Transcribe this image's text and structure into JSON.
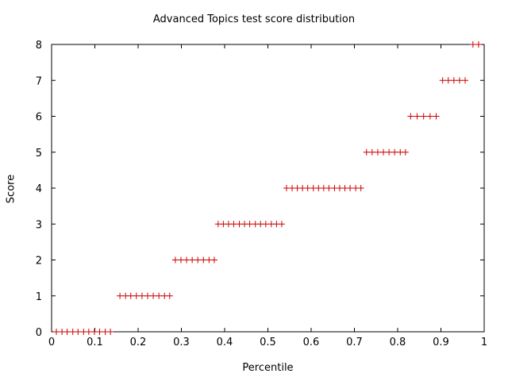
{
  "chart_data": {
    "type": "scatter",
    "title": "Advanced Topics test score distribution",
    "xlabel": "Percentile",
    "ylabel": "Score",
    "xlim": [
      0,
      1
    ],
    "ylim": [
      0,
      8
    ],
    "x_ticks": [
      "0",
      "0.1",
      "0.2",
      "0.3",
      "0.4",
      "0.5",
      "0.6",
      "0.7",
      "0.8",
      "0.9",
      "1"
    ],
    "y_ticks": [
      "0",
      "1",
      "2",
      "3",
      "4",
      "5",
      "6",
      "7",
      "8"
    ],
    "grid": false,
    "marker": "plus",
    "color": "#cc0000",
    "series": [
      {
        "points": [
          [
            0.011,
            0
          ],
          [
            0.024,
            0
          ],
          [
            0.036,
            0
          ],
          [
            0.049,
            0
          ],
          [
            0.061,
            0
          ],
          [
            0.074,
            0
          ],
          [
            0.086,
            0
          ],
          [
            0.099,
            0
          ],
          [
            0.111,
            0
          ],
          [
            0.124,
            0
          ],
          [
            0.136,
            0
          ],
          [
            0.158,
            1
          ],
          [
            0.171,
            1
          ],
          [
            0.183,
            1
          ],
          [
            0.196,
            1
          ],
          [
            0.209,
            1
          ],
          [
            0.222,
            1
          ],
          [
            0.235,
            1
          ],
          [
            0.248,
            1
          ],
          [
            0.261,
            1
          ],
          [
            0.273,
            1
          ],
          [
            0.286,
            2
          ],
          [
            0.299,
            2
          ],
          [
            0.312,
            2
          ],
          [
            0.325,
            2
          ],
          [
            0.338,
            2
          ],
          [
            0.351,
            2
          ],
          [
            0.364,
            2
          ],
          [
            0.376,
            2
          ],
          [
            0.385,
            3
          ],
          [
            0.397,
            3
          ],
          [
            0.409,
            3
          ],
          [
            0.421,
            3
          ],
          [
            0.434,
            3
          ],
          [
            0.446,
            3
          ],
          [
            0.458,
            3
          ],
          [
            0.471,
            3
          ],
          [
            0.483,
            3
          ],
          [
            0.495,
            3
          ],
          [
            0.508,
            3
          ],
          [
            0.52,
            3
          ],
          [
            0.532,
            3
          ],
          [
            0.543,
            4
          ],
          [
            0.556,
            4
          ],
          [
            0.568,
            4
          ],
          [
            0.58,
            4
          ],
          [
            0.592,
            4
          ],
          [
            0.605,
            4
          ],
          [
            0.617,
            4
          ],
          [
            0.629,
            4
          ],
          [
            0.641,
            4
          ],
          [
            0.654,
            4
          ],
          [
            0.666,
            4
          ],
          [
            0.678,
            4
          ],
          [
            0.69,
            4
          ],
          [
            0.703,
            4
          ],
          [
            0.715,
            4
          ],
          [
            0.728,
            5
          ],
          [
            0.741,
            5
          ],
          [
            0.754,
            5
          ],
          [
            0.767,
            5
          ],
          [
            0.78,
            5
          ],
          [
            0.793,
            5
          ],
          [
            0.806,
            5
          ],
          [
            0.818,
            5
          ],
          [
            0.83,
            6
          ],
          [
            0.845,
            6
          ],
          [
            0.86,
            6
          ],
          [
            0.875,
            6
          ],
          [
            0.889,
            6
          ],
          [
            0.904,
            7
          ],
          [
            0.917,
            7
          ],
          [
            0.93,
            7
          ],
          [
            0.943,
            7
          ],
          [
            0.956,
            7
          ],
          [
            0.974,
            8
          ],
          [
            0.987,
            8
          ]
        ]
      }
    ]
  }
}
